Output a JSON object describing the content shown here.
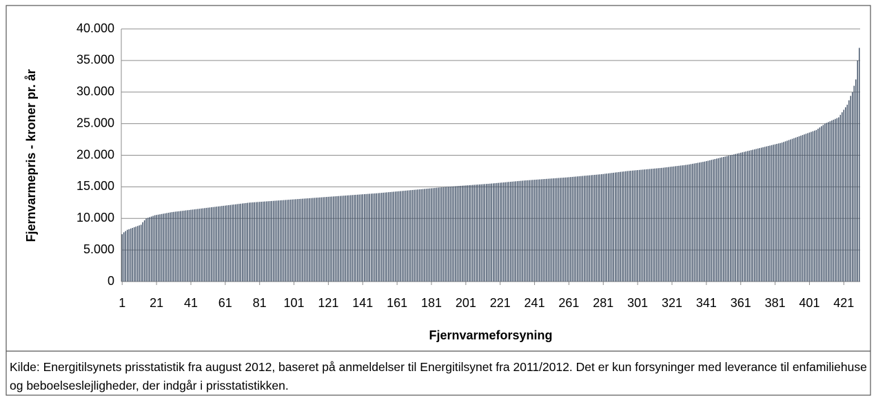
{
  "chart_data": {
    "type": "bar",
    "ylabel": "Fjernvarmepris - kroner pr. år",
    "xlabel": "Fjernvarmeforsyning",
    "caption": "Kilde: Energitilsynets prisstatistik fra august 2012, baseret på anmeldelser til Energitilsynet fra 2011/2012. Det er kun forsyninger med leverance til enfamiliehuse og beboelseslejligheder, der indgår i prisstatistikken.",
    "color": "#44546a",
    "grid": true,
    "ylim": [
      0,
      40000
    ],
    "yticks": [
      0,
      {
        "value": 5000,
        "label": "5.000"
      },
      {
        "value": 10000,
        "label": "10.000"
      },
      {
        "value": 15000,
        "label": "15.000"
      },
      {
        "value": 20000,
        "label": "20.000"
      },
      {
        "value": 25000,
        "label": "25.000"
      },
      {
        "value": 30000,
        "label": "30.000"
      },
      {
        "value": 35000,
        "label": "35.000"
      },
      {
        "value": 40000,
        "label": "40.000"
      }
    ],
    "categories": [
      1,
      null,
      null,
      null,
      null,
      null,
      null,
      null,
      null,
      null,
      null,
      null,
      null,
      null,
      null,
      null,
      null,
      null,
      null,
      null,
      21,
      null,
      null,
      null,
      null,
      null,
      null,
      null,
      null,
      null,
      null,
      null,
      null,
      null,
      null,
      null,
      null,
      null,
      null,
      null,
      41,
      null,
      null,
      null,
      null,
      null,
      null,
      null,
      null,
      null,
      null,
      null,
      null,
      null,
      null,
      null,
      null,
      null,
      null,
      null,
      61,
      null,
      null,
      null,
      null,
      null,
      null,
      null,
      null,
      null,
      null,
      null,
      null,
      null,
      null,
      null,
      null,
      null,
      null,
      null,
      81,
      null,
      null,
      null,
      null,
      null,
      null,
      null,
      null,
      null,
      null,
      null,
      null,
      null,
      null,
      null,
      null,
      null,
      null,
      null,
      101,
      null,
      null,
      null,
      null,
      null,
      null,
      null,
      null,
      null,
      null,
      null,
      null,
      null,
      null,
      null,
      null,
      null,
      null,
      null,
      121,
      null,
      null,
      null,
      null,
      null,
      null,
      null,
      null,
      null,
      null,
      null,
      null,
      null,
      null,
      null,
      null,
      null,
      null,
      null,
      141,
      null,
      null,
      null,
      null,
      null,
      null,
      null,
      null,
      null,
      null,
      null,
      null,
      null,
      null,
      null,
      null,
      null,
      null,
      null,
      161,
      null,
      null,
      null,
      null,
      null,
      null,
      null,
      null,
      null,
      null,
      null,
      null,
      null,
      null,
      null,
      null,
      null,
      null,
      null,
      181,
      null,
      null,
      null,
      null,
      null,
      null,
      null,
      null,
      null,
      null,
      null,
      null,
      null,
      null,
      null,
      null,
      null,
      null,
      null,
      201,
      null,
      null,
      null,
      null,
      null,
      null,
      null,
      null,
      null,
      null,
      null,
      null,
      null,
      null,
      null,
      null,
      null,
      null,
      null,
      221,
      null,
      null,
      null,
      null,
      null,
      null,
      null,
      null,
      null,
      null,
      null,
      null,
      null,
      null,
      null,
      null,
      null,
      null,
      null,
      241,
      null,
      null,
      null,
      null,
      null,
      null,
      null,
      null,
      null,
      null,
      null,
      null,
      null,
      null,
      null,
      null,
      null,
      null,
      null,
      261,
      null,
      null,
      null,
      null,
      null,
      null,
      null,
      null,
      null,
      null,
      null,
      null,
      null,
      null,
      null,
      null,
      null,
      null,
      null,
      281,
      null,
      null,
      null,
      null,
      null,
      null,
      null,
      null,
      null,
      null,
      null,
      null,
      null,
      null,
      null,
      null,
      null,
      null,
      null,
      301,
      null,
      null,
      null,
      null,
      null,
      null,
      null,
      null,
      null,
      null,
      null,
      null,
      null,
      null,
      null,
      null,
      null,
      null,
      null,
      321,
      null,
      null,
      null,
      null,
      null,
      null,
      null,
      null,
      null,
      null,
      null,
      null,
      null,
      null,
      null,
      null,
      null,
      null,
      null,
      341,
      null,
      null,
      null,
      null,
      null,
      null,
      null,
      null,
      null,
      null,
      null,
      null,
      null,
      null,
      null,
      null,
      null,
      null,
      null,
      361,
      null,
      null,
      null,
      null,
      null,
      null,
      null,
      null,
      null,
      null,
      null,
      null,
      null,
      null,
      null,
      null,
      null,
      null,
      null,
      381,
      null,
      null,
      null,
      null,
      null,
      null,
      null,
      null,
      null,
      null,
      null,
      null,
      null,
      null,
      null,
      null,
      null,
      null,
      null,
      401,
      null,
      null,
      null,
      null,
      null,
      null,
      null,
      null,
      null,
      null,
      null,
      null,
      null,
      null,
      null,
      null,
      null,
      null,
      null,
      421,
      null,
      null,
      null,
      null,
      null,
      null,
      null,
      null,
      null
    ],
    "values": [
      7500,
      7800,
      8000,
      8200,
      8300,
      8400,
      8500,
      8600,
      8700,
      8800,
      8900,
      9000,
      9400,
      9700,
      10000,
      10100,
      10200,
      10300,
      10400,
      10500,
      10550,
      10600,
      10650,
      10700,
      10750,
      10800,
      10850,
      10900,
      10950,
      11000,
      11030,
      11070,
      11100,
      11130,
      11170,
      11200,
      11230,
      11270,
      11300,
      11330,
      11370,
      11400,
      11430,
      11470,
      11500,
      11530,
      11570,
      11600,
      11630,
      11670,
      11700,
      11730,
      11770,
      11800,
      11830,
      11870,
      11900,
      11930,
      11970,
      12000,
      12030,
      12070,
      12100,
      12130,
      12170,
      12200,
      12230,
      12270,
      12300,
      12330,
      12370,
      12400,
      12430,
      12470,
      12500,
      12520,
      12540,
      12560,
      12580,
      12600,
      12620,
      12640,
      12660,
      12680,
      12700,
      12720,
      12740,
      12760,
      12780,
      12800,
      12820,
      12840,
      12860,
      12880,
      12900,
      12920,
      12940,
      12960,
      12980,
      13000,
      13020,
      13040,
      13060,
      13080,
      13100,
      13120,
      13140,
      13160,
      13180,
      13200,
      13220,
      13240,
      13260,
      13280,
      13300,
      13320,
      13340,
      13360,
      13380,
      13400,
      13420,
      13440,
      13460,
      13480,
      13500,
      13520,
      13540,
      13560,
      13580,
      13600,
      13620,
      13640,
      13660,
      13680,
      13700,
      13720,
      13740,
      13760,
      13780,
      13800,
      13820,
      13840,
      13860,
      13880,
      13900,
      13920,
      13940,
      13960,
      13980,
      14000,
      14025,
      14050,
      14075,
      14100,
      14125,
      14150,
      14175,
      14200,
      14225,
      14250,
      14275,
      14300,
      14325,
      14350,
      14375,
      14400,
      14425,
      14450,
      14475,
      14500,
      14525,
      14550,
      14575,
      14600,
      14625,
      14650,
      14675,
      14700,
      14725,
      14750,
      14775,
      14800,
      14825,
      14850,
      14875,
      14900,
      14925,
      14950,
      14975,
      15000,
      15020,
      15040,
      15060,
      15080,
      15100,
      15120,
      15140,
      15160,
      15180,
      15200,
      15220,
      15240,
      15260,
      15280,
      15300,
      15320,
      15340,
      15360,
      15380,
      15400,
      15420,
      15440,
      15460,
      15480,
      15500,
      15525,
      15550,
      15575,
      15600,
      15625,
      15650,
      15675,
      15700,
      15725,
      15750,
      15775,
      15800,
      15825,
      15850,
      15875,
      15900,
      15925,
      15950,
      15975,
      16000,
      16020,
      16040,
      16060,
      16080,
      16100,
      16120,
      16140,
      16160,
      16180,
      16200,
      16220,
      16240,
      16260,
      16280,
      16300,
      16320,
      16340,
      16360,
      16380,
      16400,
      16420,
      16440,
      16460,
      16480,
      16500,
      16525,
      16550,
      16575,
      16600,
      16625,
      16650,
      16675,
      16700,
      16725,
      16750,
      16775,
      16800,
      16825,
      16850,
      16875,
      16900,
      16925,
      16950,
      16975,
      17000,
      17030,
      17070,
      17100,
      17130,
      17170,
      17200,
      17230,
      17270,
      17300,
      17330,
      17370,
      17400,
      17430,
      17470,
      17500,
      17525,
      17550,
      17575,
      17600,
      17625,
      17650,
      17675,
      17700,
      17725,
      17750,
      17775,
      17800,
      17825,
      17850,
      17875,
      17900,
      17925,
      17950,
      17975,
      18000,
      18030,
      18070,
      18100,
      18130,
      18170,
      18200,
      18230,
      18270,
      18300,
      18330,
      18370,
      18400,
      18430,
      18470,
      18500,
      18550,
      18600,
      18650,
      18700,
      18750,
      18800,
      18850,
      18900,
      18950,
      19000,
      19070,
      19130,
      19200,
      19270,
      19330,
      19400,
      19470,
      19530,
      19600,
      19670,
      19730,
      19800,
      19870,
      19930,
      20000,
      20070,
      20130,
      20200,
      20270,
      20330,
      20400,
      20470,
      20530,
      20600,
      20670,
      20730,
      20800,
      20870,
      20930,
      21000,
      21070,
      21130,
      21200,
      21270,
      21330,
      21400,
      21470,
      21530,
      21600,
      21670,
      21730,
      21800,
      21870,
      21930,
      22000,
      22100,
      22200,
      22300,
      22400,
      22500,
      22600,
      22700,
      22800,
      22900,
      23000,
      23100,
      23200,
      23300,
      23400,
      23500,
      23600,
      23700,
      23800,
      23900,
      24000,
      24200,
      24400,
      24600,
      24800,
      25000,
      25125,
      25250,
      25375,
      25500,
      25625,
      25750,
      25875,
      26000,
      26400,
      26800,
      27200,
      27600,
      28000,
      28700,
      29400,
      30000,
      31000,
      32000,
      35000,
      37000
    ]
  }
}
